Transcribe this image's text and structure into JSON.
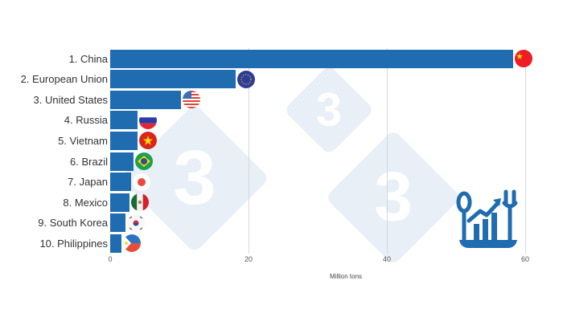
{
  "chart_data": {
    "type": "bar",
    "orientation": "horizontal",
    "title": "",
    "xlabel": "Million tons",
    "ylabel": "",
    "xlim": [
      0,
      62
    ],
    "x_ticks": [
      "0",
      "20",
      "40",
      "60"
    ],
    "grid": true,
    "legend": "none",
    "bar_color": "#1f6cb0",
    "categories": [
      "1. China",
      "2. European Union",
      "3. United States",
      "4. Russia",
      "5. Vietnam",
      "6. Brazil",
      "7. Japan",
      "8. Mexico",
      "9. South Korea",
      "10. Philippines"
    ],
    "values": [
      58.3,
      18.1,
      10.2,
      3.9,
      3.9,
      3.4,
      3.0,
      2.8,
      2.2,
      1.6
    ],
    "flags": [
      "china",
      "european-union",
      "united-states",
      "russia",
      "vietnam",
      "brazil",
      "japan",
      "mexico",
      "south-korea",
      "philippines"
    ]
  },
  "watermark": {
    "glyph": "3"
  },
  "icon": "food-chart-icon"
}
